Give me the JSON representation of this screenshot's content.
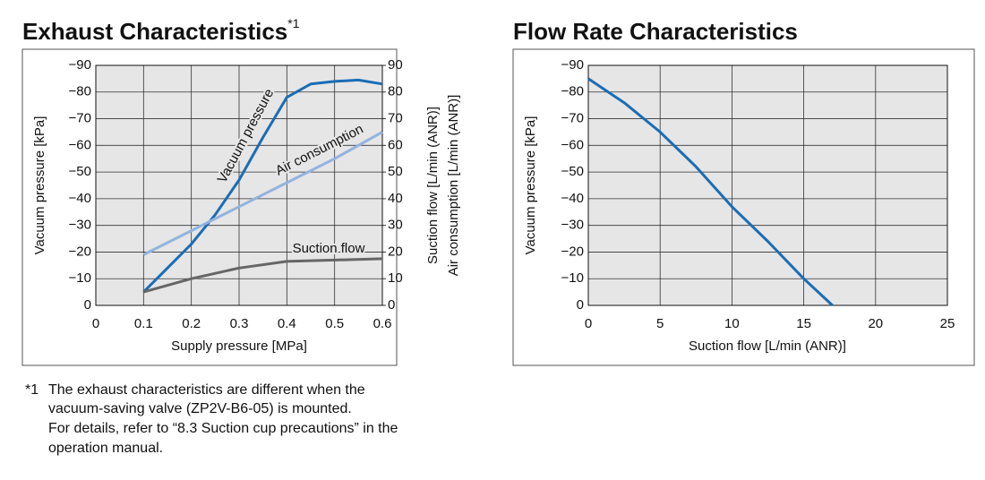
{
  "chart_data": [
    {
      "type": "line",
      "title": "Exhaust Characteristics",
      "title_mark": "*1",
      "xlabel": "Supply pressure [MPa]",
      "ylabel": "Vacuum pressure [kPa]",
      "y2labels": [
        "Suction flow [L/min (ANR)]",
        "Air consumption [L/min (ANR)]"
      ],
      "xlim": [
        0,
        0.6
      ],
      "xticks": [
        0,
        0.1,
        0.2,
        0.3,
        0.4,
        0.5,
        0.6
      ],
      "ylim": [
        0,
        -90
      ],
      "yticks": [
        {
          "value": 0,
          "label": "0"
        },
        {
          "value": -10,
          "label": "−10"
        },
        {
          "value": -20,
          "label": "−20"
        },
        {
          "value": -30,
          "label": "−30"
        },
        {
          "value": -40,
          "label": "−40"
        },
        {
          "value": -50,
          "label": "−50"
        },
        {
          "value": -60,
          "label": "−60"
        },
        {
          "value": -70,
          "label": "−70"
        },
        {
          "value": -80,
          "label": "−80"
        },
        {
          "value": -90,
          "label": "−90"
        }
      ],
      "y2lim": [
        0,
        90
      ],
      "y2ticks": [
        0,
        10,
        20,
        30,
        40,
        50,
        60,
        70,
        80,
        90
      ],
      "grid": true,
      "series": [
        {
          "name": "Vacuum pressure",
          "color": "#1a6db5",
          "x": [
            0.1,
            0.15,
            0.2,
            0.25,
            0.3,
            0.35,
            0.4,
            0.45,
            0.5,
            0.55,
            0.6
          ],
          "values": [
            -5,
            -14,
            -23,
            -34,
            -47,
            -63,
            -78,
            -83,
            -84,
            -84.5,
            -83
          ]
        },
        {
          "name": "Air consumption",
          "color": "#93b3de",
          "axis": "y2",
          "x": [
            0.1,
            0.2,
            0.3,
            0.4,
            0.5,
            0.6
          ],
          "values": [
            19,
            28,
            37,
            46,
            55,
            65
          ]
        },
        {
          "name": "Suction flow",
          "color": "#666666",
          "axis": "y2",
          "x": [
            0.1,
            0.2,
            0.3,
            0.4,
            0.5,
            0.6
          ],
          "values": [
            5,
            10,
            14,
            16.5,
            17,
            17.5
          ]
        }
      ]
    },
    {
      "type": "line",
      "title": "Flow Rate Characteristics",
      "xlabel": "Suction flow [L/min (ANR)]",
      "ylabel": "Vacuum pressure [kPa]",
      "xlim": [
        0,
        25
      ],
      "xticks": [
        0,
        5,
        10,
        15,
        20,
        25
      ],
      "ylim": [
        0,
        -90
      ],
      "yticks": [
        {
          "value": 0,
          "label": "0"
        },
        {
          "value": -10,
          "label": "−10"
        },
        {
          "value": -20,
          "label": "−20"
        },
        {
          "value": -30,
          "label": "−30"
        },
        {
          "value": -40,
          "label": "−40"
        },
        {
          "value": -50,
          "label": "−50"
        },
        {
          "value": -60,
          "label": "−60"
        },
        {
          "value": -70,
          "label": "−70"
        },
        {
          "value": -80,
          "label": "−80"
        },
        {
          "value": -90,
          "label": "−90"
        }
      ],
      "grid": true,
      "series": [
        {
          "name": "Vacuum pressure",
          "color": "#1a6db5",
          "x": [
            0,
            2.5,
            5,
            7.5,
            10,
            12.5,
            15,
            17
          ],
          "values": [
            -85,
            -76,
            -65,
            -52,
            -37,
            -24,
            -10,
            0
          ]
        }
      ]
    }
  ],
  "footnote": {
    "marker": "*1",
    "lines": [
      "The exhaust characteristics are different when the",
      "vacuum-saving valve (ZP2V-B6-05) is mounted.",
      "For details, refer to “8.3 Suction cup precautions” in the",
      "operation manual."
    ]
  }
}
